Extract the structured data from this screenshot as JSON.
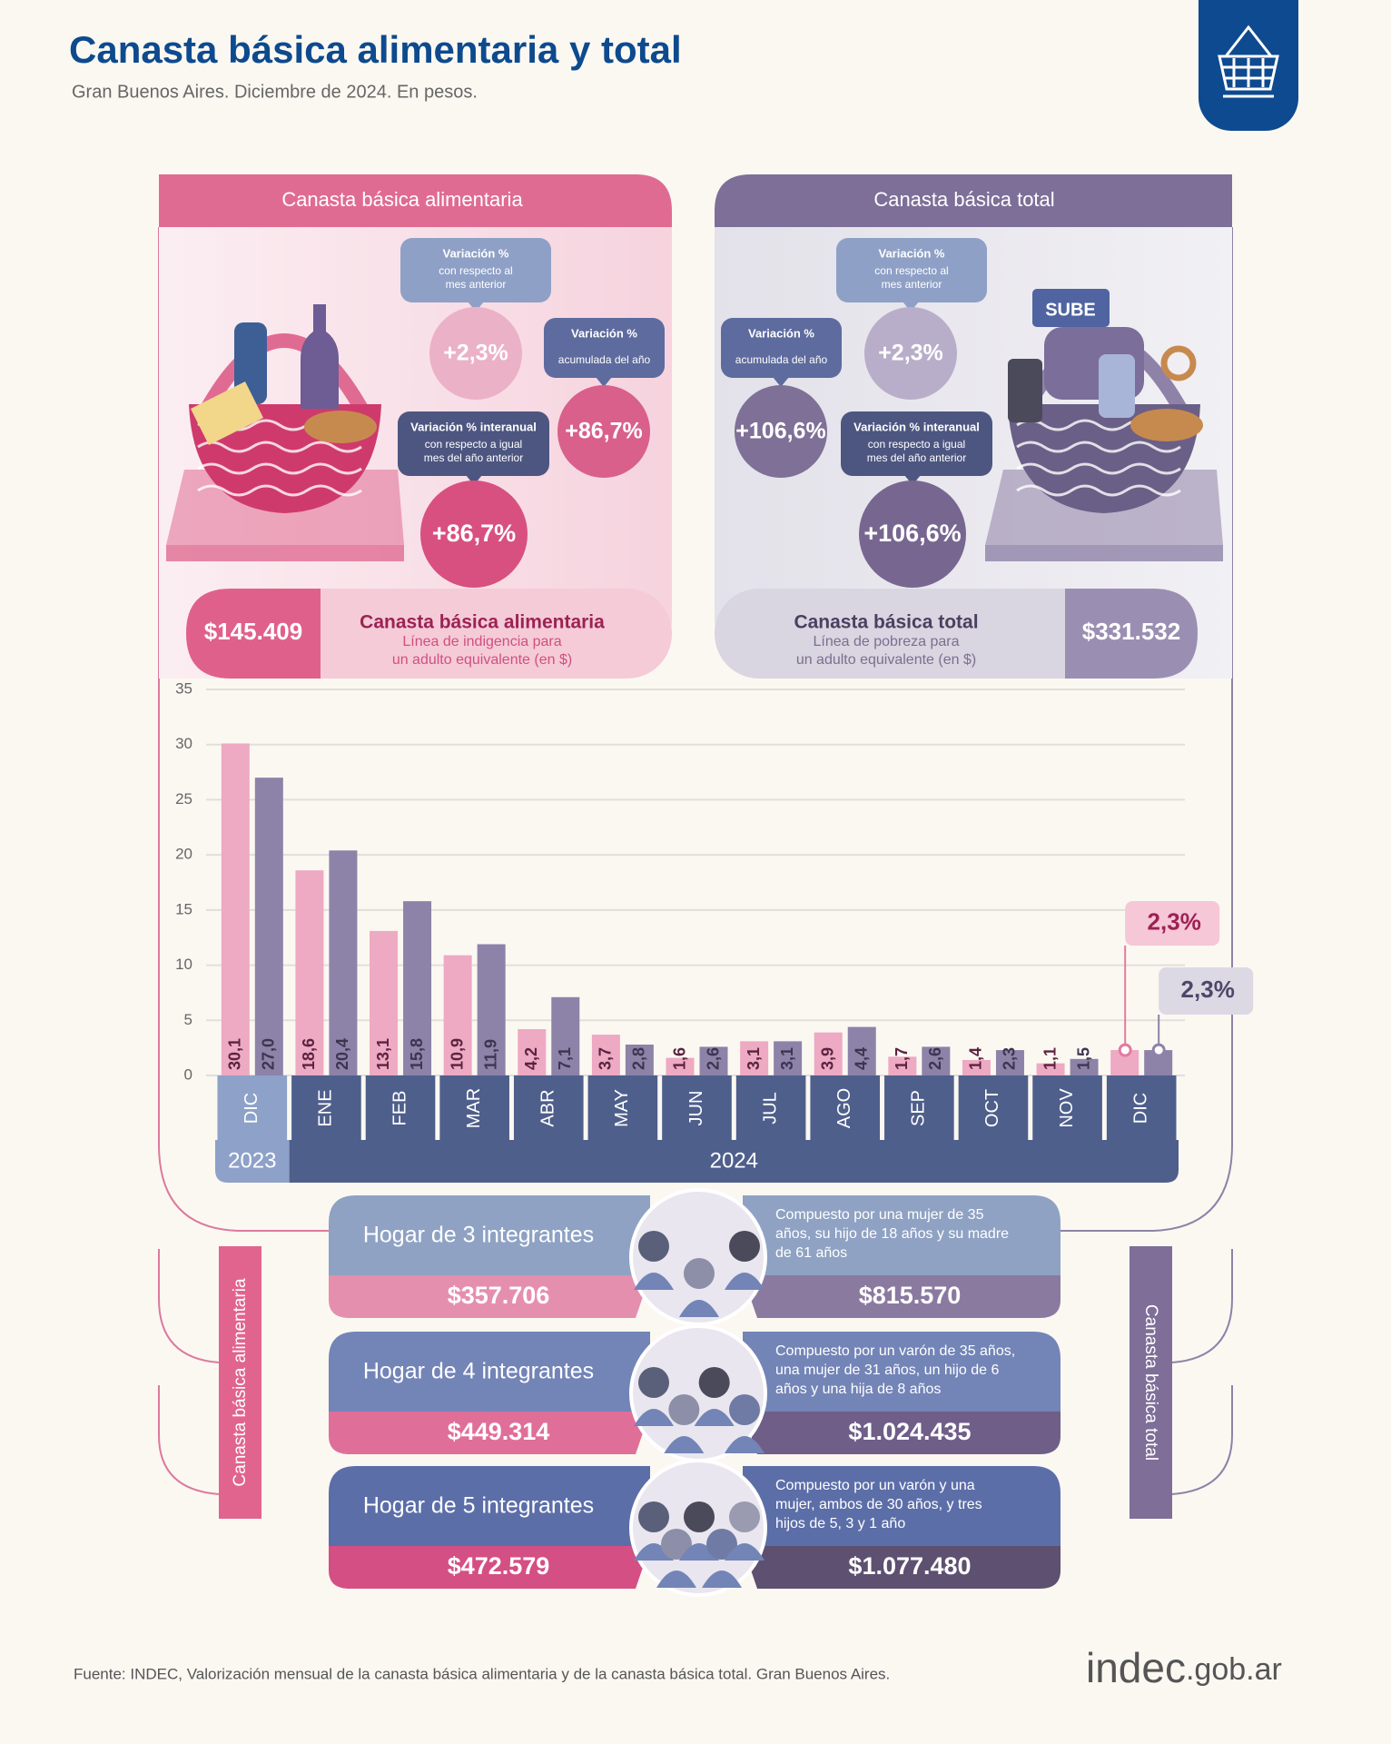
{
  "header": {
    "title": "Canasta básica alimentaria y total",
    "subtitle": "Gran Buenos Aires. Diciembre de 2024. En pesos."
  },
  "panels": [
    {
      "heading": "Canasta básica alimentaria",
      "callouts": [
        {
          "title": "Variación %",
          "subtitle": [
            "con respecto al",
            "mes anterior"
          ],
          "value": "+2,3%"
        },
        {
          "title": "Variación %",
          "subtitle": [
            "acumulada del año"
          ],
          "value": "+86,7%"
        },
        {
          "title": "Variación % interanual",
          "subtitle": [
            "con respecto a igual",
            "mes del año anterior"
          ],
          "value": "+86,7%"
        }
      ],
      "summary": {
        "amount": "$145.409",
        "name": "Canasta básica alimentaria",
        "description": [
          "Línea de indigencia para",
          "un adulto equivalente (en $)"
        ]
      }
    },
    {
      "heading": "Canasta básica total",
      "illustration_text": "SUBE",
      "callouts": [
        {
          "title": "Variación %",
          "subtitle": [
            "con respecto al",
            "mes anterior"
          ],
          "value": "+2,3%"
        },
        {
          "title": "Variación %",
          "subtitle": [
            "acumulada del año"
          ],
          "value": "+106,6%"
        },
        {
          "title": "Variación % interanual",
          "subtitle": [
            "con respecto a igual",
            "mes del año anterior"
          ],
          "value": "+106,6%"
        }
      ],
      "summary": {
        "amount": "$331.532",
        "name": "Canasta básica total",
        "description": [
          "Línea de pobreza para",
          "un adulto equivalente (en $)"
        ]
      }
    }
  ],
  "chart_data": {
    "type": "bar",
    "categories": [
      "DIC",
      "ENE",
      "FEB",
      "MAR",
      "ABR",
      "MAY",
      "JUN",
      "JUL",
      "AGO",
      "SEP",
      "OCT",
      "NOV",
      "DIC"
    ],
    "years": [
      {
        "label": "2023",
        "count": 1
      },
      {
        "label": "2024",
        "count": 12
      }
    ],
    "series": [
      {
        "name": "Canasta básica alimentaria",
        "color": "#eea9c3",
        "values": [
          30.1,
          18.6,
          13.1,
          10.9,
          4.2,
          3.7,
          1.6,
          3.1,
          3.9,
          1.7,
          1.4,
          1.1,
          2.3
        ],
        "value_labels": [
          "30,1",
          "18,6",
          "13,1",
          "10,9",
          "4,2",
          "3,7",
          "1,6",
          "3,1",
          "3,9",
          "1,7",
          "1,4",
          "1,1",
          "2,3%"
        ]
      },
      {
        "name": "Canasta básica total",
        "color": "#8d82a8",
        "values": [
          27.0,
          20.4,
          15.8,
          11.9,
          7.1,
          2.8,
          2.6,
          3.1,
          4.4,
          2.6,
          2.3,
          1.5,
          2.3
        ],
        "value_labels": [
          "27,0",
          "20,4",
          "15,8",
          "11,9",
          "7,1",
          "2,8",
          "2,6",
          "3,1",
          "4,4",
          "2,6",
          "2,3",
          "1,5",
          "2,3%"
        ]
      }
    ],
    "ylim": [
      0,
      35
    ],
    "yticks": [
      0,
      5,
      10,
      15,
      20,
      25,
      30,
      35
    ],
    "grid": true
  },
  "households": [
    {
      "title": "Hogar de 3 integrantes",
      "description": [
        "Compuesto por una mujer de 35",
        "años, su hijo de 18 años y su madre",
        "de 61 años"
      ],
      "food_basket": "$357.706",
      "total_basket": "$815.570"
    },
    {
      "title": "Hogar de 4 integrantes",
      "description": [
        "Compuesto por un varón de 35 años,",
        "una mujer de 31 años, un hijo de 6",
        "años y una hija de 8 años"
      ],
      "food_basket": "$449.314",
      "total_basket": "$1.024.435"
    },
    {
      "title": "Hogar de 5 integrantes",
      "description": [
        "Compuesto por un varón y una",
        "mujer, ambos de 30 años, y tres",
        "hijos de 5, 3 y 1 año"
      ],
      "food_basket": "$472.579",
      "total_basket": "$1.077.480"
    }
  ],
  "footer": {
    "source": "Fuente: INDEC, Valorización mensual de la canasta básica alimentaria y de la canasta básica total. Gran Buenos Aires.",
    "logo": [
      "indec",
      ".gob.ar"
    ]
  }
}
